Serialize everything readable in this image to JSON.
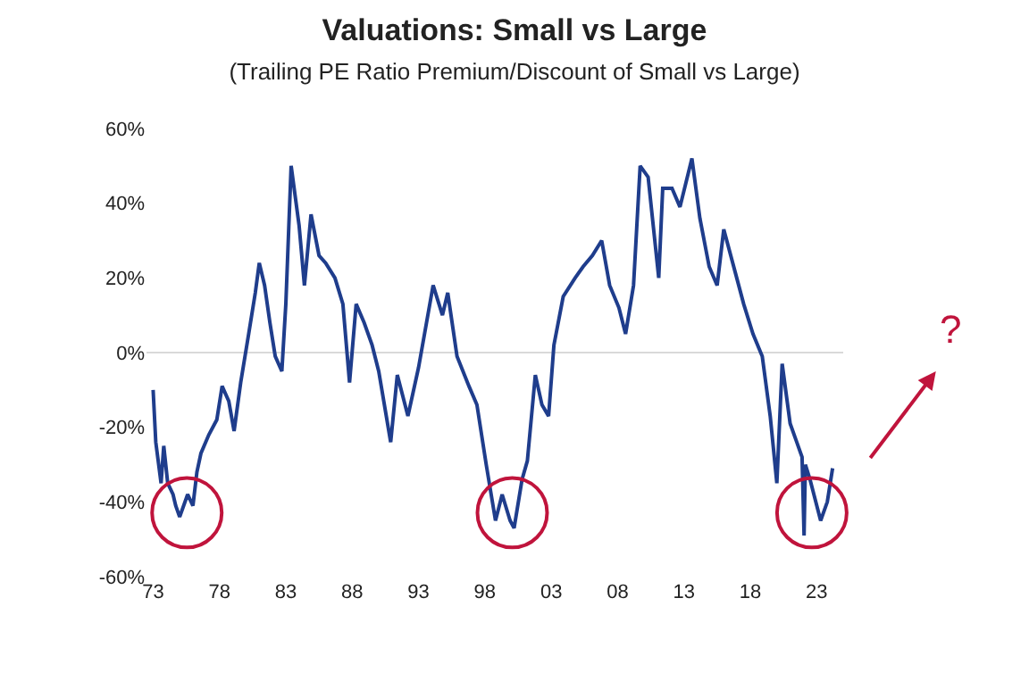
{
  "chart_data": {
    "type": "line",
    "title": "Valuations: Small vs Large",
    "subtitle": "(Trailing PE Ratio Premium/Discount of Small vs Large)",
    "x": [
      1973.0,
      1973.2,
      1973.6,
      1973.8,
      1974.1,
      1974.5,
      1974.7,
      1975.0,
      1975.6,
      1976.0,
      1976.3,
      1976.6,
      1977.2,
      1977.8,
      1978.2,
      1978.7,
      1979.1,
      1979.6,
      1980.2,
      1980.7,
      1981.0,
      1981.4,
      1981.8,
      1982.2,
      1982.7,
      1983.0,
      1983.4,
      1984.0,
      1984.4,
      1984.9,
      1985.5,
      1986.0,
      1986.7,
      1987.3,
      1987.8,
      1988.3,
      1988.9,
      1989.5,
      1990.0,
      1990.9,
      1991.4,
      1992.2,
      1993.0,
      1994.1,
      1994.8,
      1995.2,
      1995.9,
      1996.8,
      1997.4,
      1998.1,
      1998.8,
      1999.3,
      1999.9,
      2000.2,
      2000.8,
      2001.2,
      2001.8,
      2002.3,
      2002.8,
      2003.2,
      2003.9,
      2004.8,
      2005.4,
      2006.1,
      2006.8,
      2007.4,
      2008.1,
      2008.6,
      2009.2,
      2009.7,
      2010.3,
      2011.1,
      2011.4,
      2012.1,
      2012.7,
      2013.6,
      2014.2,
      2014.9,
      2015.5,
      2016.0,
      2016.9,
      2017.5,
      2018.2,
      2018.9,
      2019.5,
      2020.0,
      2020.4,
      2021.0,
      2021.5,
      2021.9,
      2022.05,
      2022.15,
      2022.5,
      2023.3,
      2023.8,
      2024.2
    ],
    "values": [
      -10,
      -24,
      -35,
      -25,
      -35,
      -38,
      -41,
      -44,
      -38,
      -41,
      -32,
      -27,
      -22,
      -18,
      -9,
      -13,
      -21,
      -8,
      5,
      16,
      24,
      18,
      8,
      -1,
      -5,
      13,
      50,
      34,
      18,
      37,
      26,
      24,
      20,
      13,
      -8,
      13,
      8,
      2,
      -5,
      -24,
      -6,
      -17,
      -4,
      18,
      10,
      16,
      -1,
      -9,
      -14,
      -30,
      -45,
      -38,
      -45,
      -47,
      -34,
      -29,
      -6,
      -14,
      -17,
      2,
      15,
      20,
      23,
      26,
      30,
      18,
      12,
      5,
      18,
      50,
      47,
      20,
      44,
      44,
      39,
      52,
      36,
      23,
      18,
      33,
      21,
      13,
      5,
      -1,
      -17,
      -35,
      -3,
      -19,
      -24,
      -28,
      -49,
      -30,
      -34,
      -45,
      -40,
      -31
    ],
    "color": "#1f3d8c",
    "line_style": "solid",
    "marker": "none",
    "xlim": [
      1972.5,
      2025
    ],
    "xticks": [
      {
        "value": 1973,
        "label": "73"
      },
      {
        "value": 1978,
        "label": "78"
      },
      {
        "value": 1983,
        "label": "83"
      },
      {
        "value": 1988,
        "label": "88"
      },
      {
        "value": 1993,
        "label": "93"
      },
      {
        "value": 1998,
        "label": "98"
      },
      {
        "value": 2003,
        "label": "03"
      },
      {
        "value": 2008,
        "label": "08"
      },
      {
        "value": 2013,
        "label": "13"
      },
      {
        "value": 2018,
        "label": "18"
      },
      {
        "value": 2023,
        "label": "23"
      }
    ],
    "ylim": [
      -60,
      60
    ],
    "yticks": [
      {
        "value": -60,
        "label": "-60%"
      },
      {
        "value": -40,
        "label": "-40%"
      },
      {
        "value": -20,
        "label": "-20%"
      },
      {
        "value": 0,
        "label": "0%"
      },
      {
        "value": 20,
        "label": "20%"
      },
      {
        "value": 40,
        "label": "40%"
      },
      {
        "value": 60,
        "label": "60%"
      }
    ],
    "ref_lines": [
      {
        "axis": "y",
        "value": 0,
        "color": "#d9d9d9"
      }
    ],
    "grid": false,
    "legend": false,
    "annotations": [
      "?"
    ]
  }
}
